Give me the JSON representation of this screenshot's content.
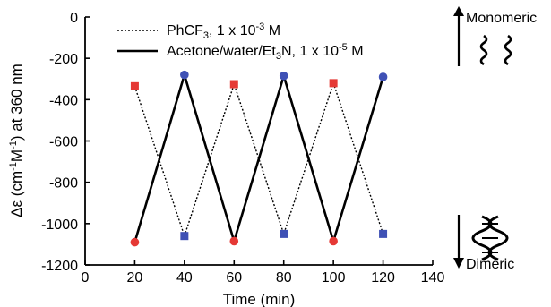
{
  "chart_data": {
    "type": "line",
    "xlabel": "Time (min)",
    "ylabel_prefix": "Δε (cm",
    "ylabel_sup1": "-1",
    "ylabel_mid": "M",
    "ylabel_sup2": "-1",
    "ylabel_suffix": ") at 360 nm",
    "xlim": [
      0,
      140
    ],
    "ylim": [
      -1200,
      0
    ],
    "xticks": [
      0,
      20,
      40,
      60,
      80,
      100,
      120,
      140
    ],
    "yticks": [
      0,
      -200,
      -400,
      -600,
      -800,
      -1000,
      -1200
    ],
    "grid": false,
    "legend_position": "top",
    "series": [
      {
        "name": "PhCF3, 1 x 10-3 M",
        "line_style": "dotted",
        "x": [
          20,
          40,
          60,
          80,
          100,
          120
        ],
        "y": [
          -335,
          -1060,
          -325,
          -1050,
          -320,
          -1050
        ],
        "marker": "square",
        "marker_colors": [
          "#e53935",
          "#3f51b5",
          "#e53935",
          "#3f51b5",
          "#e53935",
          "#3f51b5"
        ]
      },
      {
        "name": "Acetone/water/Et3N, 1 x 10-5 M",
        "line_style": "solid",
        "x": [
          20,
          40,
          60,
          80,
          100,
          120
        ],
        "y": [
          -1090,
          -280,
          -1085,
          -285,
          -1085,
          -290
        ],
        "marker": "circle",
        "marker_colors": [
          "#e53935",
          "#3f51b5",
          "#e53935",
          "#3f51b5",
          "#e53935",
          "#3f51b5"
        ]
      }
    ],
    "legend_labels": [
      {
        "base": "PhCF",
        "sub": "3",
        "rest1": ", 1 x 10",
        "sup": "-3",
        "rest2": " M"
      },
      {
        "base": "Acetone/water/Et",
        "sub": "3",
        "rest1": "N, 1 x 10",
        "sup": "-5",
        "rest2": " M"
      }
    ],
    "annotations": {
      "top": "Monomeric",
      "bottom": "Dimeric"
    }
  }
}
